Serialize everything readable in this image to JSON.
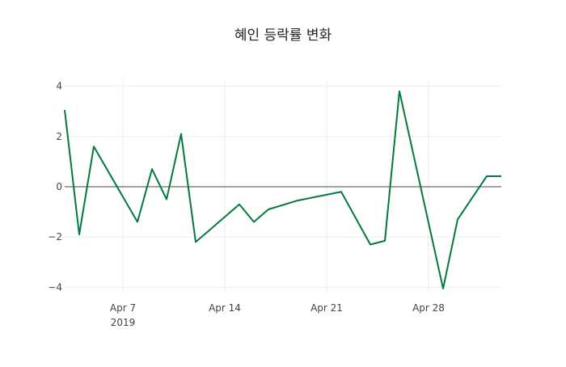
{
  "chart_data": {
    "type": "line",
    "title": "혜인 등락률 변화",
    "xlabel": "",
    "ylabel": "",
    "ylim": [
      -4.3,
      4.3
    ],
    "xlim": [
      "2019-04-03",
      "2019-05-03"
    ],
    "yticks": [
      4,
      2,
      0,
      -2,
      -4
    ],
    "ytick_labels": [
      "4",
      "2",
      "0",
      "−2",
      "−4"
    ],
    "xticks": [
      "2019-04-07",
      "2019-04-14",
      "2019-04-21",
      "2019-04-28"
    ],
    "xtick_labels": [
      "Apr 7",
      "Apr 14",
      "Apr 21",
      "Apr 28"
    ],
    "xtick_year_label": "2019",
    "grid": true,
    "series": [
      {
        "name": "등락률",
        "color": "#007a3d",
        "x": [
          "2019-04-03",
          "2019-04-04",
          "2019-04-05",
          "2019-04-08",
          "2019-04-09",
          "2019-04-10",
          "2019-04-11",
          "2019-04-12",
          "2019-04-15",
          "2019-04-16",
          "2019-04-17",
          "2019-04-19",
          "2019-04-22",
          "2019-04-24",
          "2019-04-25",
          "2019-04-26",
          "2019-04-29",
          "2019-04-30",
          "2019-05-02",
          "2019-05-03"
        ],
        "values": [
          3.05,
          -1.9,
          1.6,
          -1.4,
          0.7,
          -0.5,
          2.1,
          -2.2,
          -0.7,
          -1.4,
          -0.9,
          -0.55,
          -0.2,
          -2.3,
          -2.15,
          3.8,
          -4.05,
          -1.3,
          0.42,
          0.42
        ]
      }
    ]
  }
}
